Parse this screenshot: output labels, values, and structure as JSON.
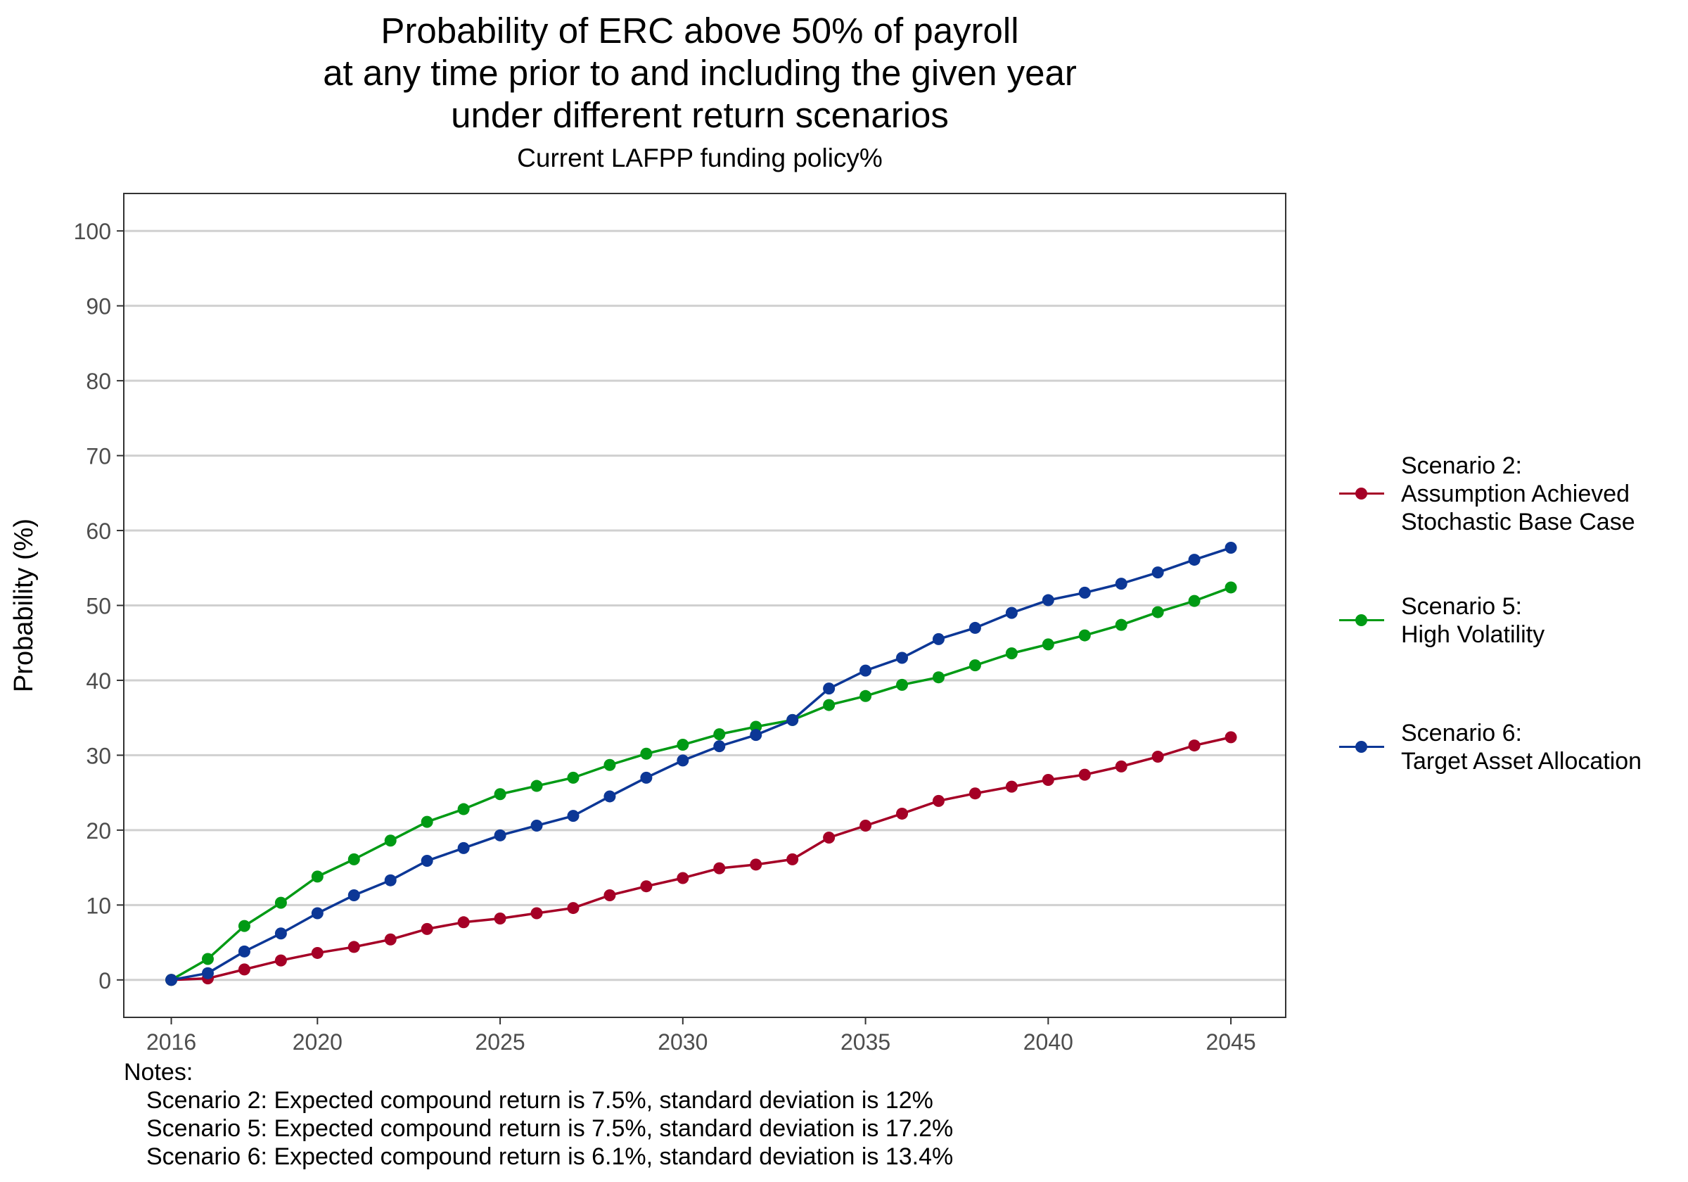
{
  "chart_data": {
    "type": "line",
    "title_lines": [
      "Probability of ERC above 50% of payroll",
      "at any time prior to and including the given year",
      "under different return scenarios"
    ],
    "subtitle": "Current LAFPP funding policy%",
    "xlabel": "",
    "ylabel": "Probability (%)",
    "xlim": [
      2014.7,
      2046.5
    ],
    "ylim": [
      -5,
      105
    ],
    "x_ticks": [
      2016,
      2020,
      2025,
      2030,
      2035,
      2040,
      2045
    ],
    "y_ticks": [
      0,
      10,
      20,
      30,
      40,
      50,
      60,
      70,
      80,
      90,
      100
    ],
    "grid": "horizontal major",
    "legend_position": "right",
    "x": [
      2016,
      2017,
      2018,
      2019,
      2020,
      2021,
      2022,
      2023,
      2024,
      2025,
      2026,
      2027,
      2028,
      2029,
      2030,
      2031,
      2032,
      2033,
      2034,
      2035,
      2036,
      2037,
      2038,
      2039,
      2040,
      2041,
      2042,
      2043,
      2044,
      2045
    ],
    "series": [
      {
        "label_lines": [
          "Scenario 2:",
          "Assumption Achieved",
          "Stochastic Base Case"
        ],
        "color": "#a50026",
        "values": [
          0,
          0.2,
          1.4,
          2.6,
          3.6,
          4.4,
          5.4,
          6.8,
          7.7,
          8.2,
          8.9,
          9.6,
          11.3,
          12.5,
          13.6,
          14.9,
          15.4,
          16.1,
          19.0,
          20.6,
          22.2,
          23.9,
          24.9,
          25.8,
          26.7,
          27.4,
          28.5,
          29.8,
          31.3,
          32.4
        ]
      },
      {
        "label_lines": [
          "Scenario 5:",
          "High Volatility"
        ],
        "color": "#009a14",
        "values": [
          0,
          2.8,
          7.2,
          10.3,
          13.8,
          16.1,
          18.6,
          21.1,
          22.8,
          24.8,
          25.9,
          27.0,
          28.7,
          30.2,
          31.4,
          32.8,
          33.8,
          34.7,
          36.7,
          37.9,
          39.4,
          40.4,
          42.0,
          43.6,
          44.8,
          46.0,
          47.4,
          49.1,
          50.6,
          52.4
        ]
      },
      {
        "label_lines": [
          "Scenario 6:",
          "Target Asset Allocation"
        ],
        "color": "#0c3796",
        "values": [
          0,
          0.9,
          3.8,
          6.2,
          8.9,
          11.3,
          13.3,
          15.9,
          17.6,
          19.3,
          20.6,
          21.9,
          24.5,
          27.0,
          29.3,
          31.2,
          32.7,
          34.7,
          38.9,
          41.3,
          43.0,
          45.5,
          47.0,
          49.0,
          50.7,
          51.7,
          52.9,
          54.4,
          56.1,
          57.7
        ]
      }
    ]
  },
  "notes": {
    "header": "Notes:",
    "lines": [
      "Scenario 2: Expected compound return is 7.5%, standard deviation is 12%",
      "Scenario 5: Expected compound return is 7.5%, standard deviation is 17.2%",
      "Scenario 6: Expected compound return is 6.1%, standard deviation is 13.4%"
    ]
  }
}
